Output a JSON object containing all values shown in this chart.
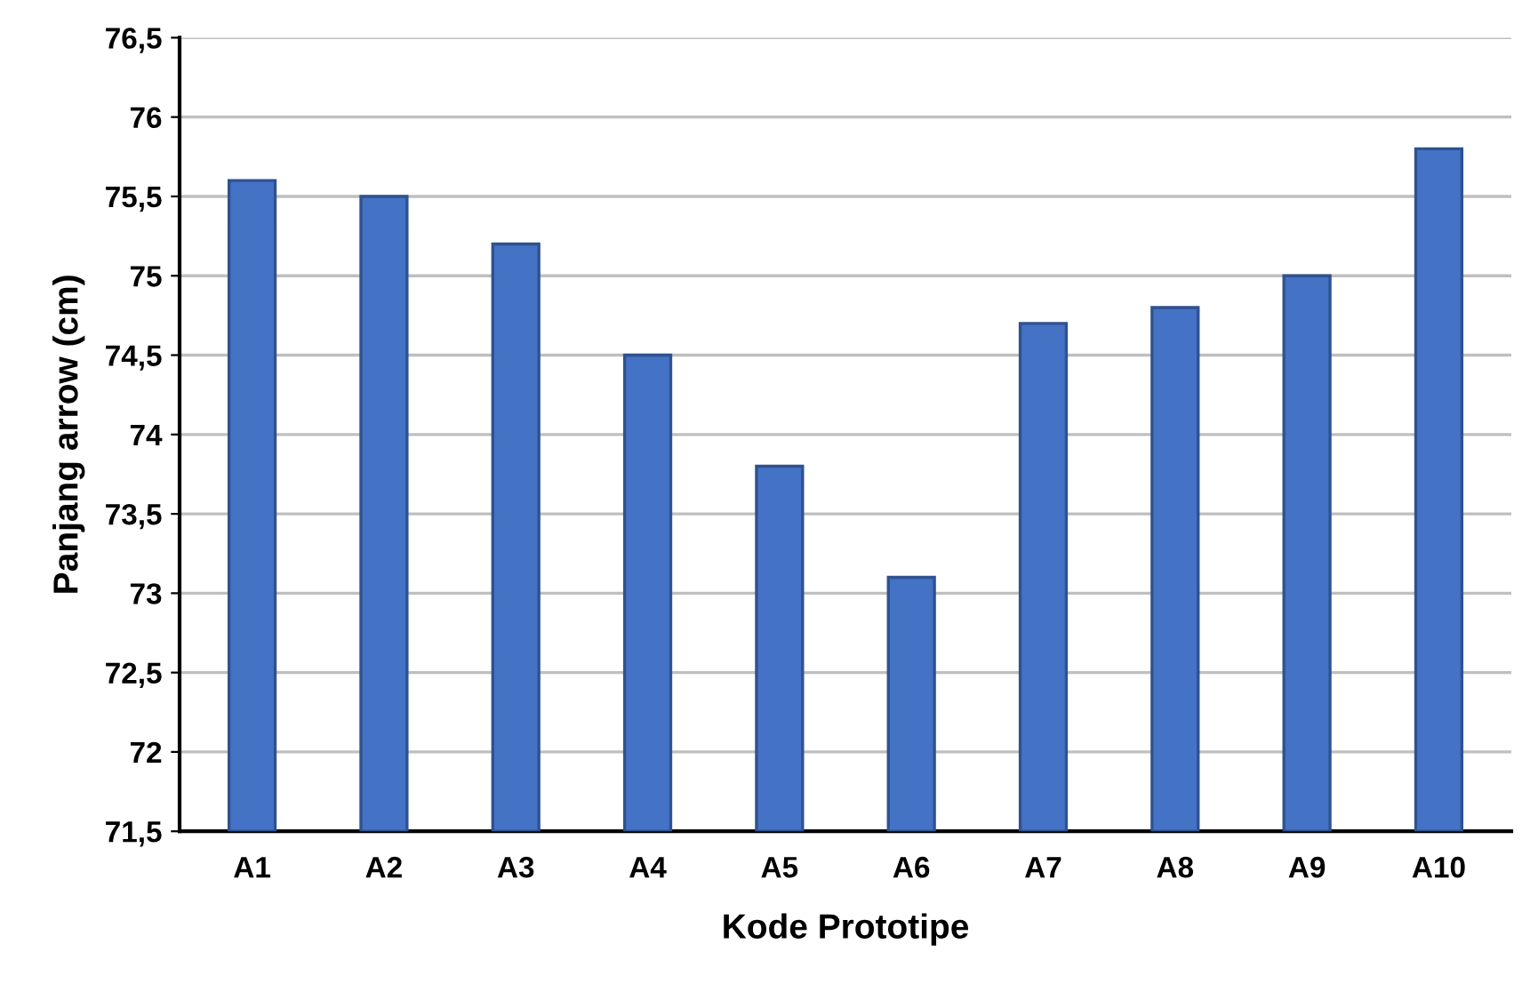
{
  "chart_data": {
    "type": "bar",
    "xlabel": "Kode Prototipe",
    "ylabel": "Panjang arrow (cm)",
    "categories": [
      "A1",
      "A2",
      "A3",
      "A4",
      "A5",
      "A6",
      "A7",
      "A8",
      "A9",
      "A10"
    ],
    "values": [
      75.6,
      75.5,
      75.2,
      74.5,
      73.8,
      73.1,
      74.7,
      74.8,
      75.0,
      75.8
    ],
    "color": "#4472c4",
    "ylim": [
      71.5,
      76.5
    ],
    "yticks": [
      {
        "value": 71.5,
        "label": "71,5"
      },
      72,
      {
        "value": 72.5,
        "label": "72,5"
      },
      73,
      {
        "value": 73.5,
        "label": "73,5"
      },
      74,
      {
        "value": 74.5,
        "label": "74,5"
      },
      75,
      {
        "value": 75.5,
        "label": "75,5"
      },
      76,
      {
        "value": 76.5,
        "label": "76,5"
      }
    ],
    "grid": "y",
    "legend": false
  }
}
